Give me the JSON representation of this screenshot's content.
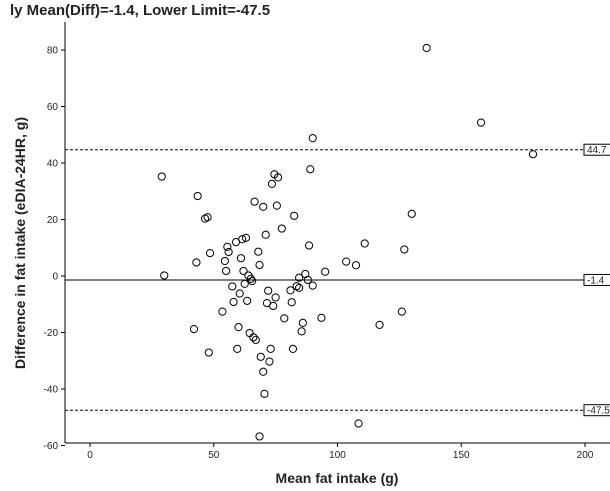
{
  "chart_data": {
    "type": "scatter",
    "title": "ly Mean(Diff)=-1.4, Lower Limit=-47.5",
    "xlabel": "Mean fat intake (g)",
    "ylabel": "Difference in fat intake (eDIA-24HR, g)",
    "xlim": [
      -10,
      210
    ],
    "ylim": [
      -60,
      95
    ],
    "x_ticks": [
      0,
      50,
      100,
      150,
      200
    ],
    "y_ticks": [
      -60,
      -40,
      -20,
      0,
      20,
      40,
      60,
      80
    ],
    "grid": false,
    "point_style": "open-circle",
    "reference_lines": [
      {
        "value": 44.7,
        "label": "44.7",
        "style": "dashed"
      },
      {
        "value": -1.4,
        "label": "-1.4",
        "style": "solid"
      },
      {
        "value": -47.5,
        "label": "-47.5",
        "style": "dashed"
      }
    ],
    "points": [
      {
        "x": 29.0,
        "y": 35.2
      },
      {
        "x": 30.0,
        "y": 0.2
      },
      {
        "x": 42.0,
        "y": -18.8
      },
      {
        "x": 43.0,
        "y": 4.8
      },
      {
        "x": 43.5,
        "y": 28.3
      },
      {
        "x": 46.5,
        "y": 20.3
      },
      {
        "x": 47.5,
        "y": 20.8
      },
      {
        "x": 48.0,
        "y": -27.1
      },
      {
        "x": 48.5,
        "y": 8.1
      },
      {
        "x": 53.5,
        "y": -12.6
      },
      {
        "x": 54.5,
        "y": 5.3
      },
      {
        "x": 55.0,
        "y": 1.8
      },
      {
        "x": 55.5,
        "y": 10.3
      },
      {
        "x": 56.0,
        "y": 8.5
      },
      {
        "x": 57.5,
        "y": -3.7
      },
      {
        "x": 58.0,
        "y": -9.2
      },
      {
        "x": 59.0,
        "y": 12.0
      },
      {
        "x": 59.5,
        "y": -25.8
      },
      {
        "x": 60.0,
        "y": -18.1
      },
      {
        "x": 60.5,
        "y": -6.2
      },
      {
        "x": 61.0,
        "y": 6.3
      },
      {
        "x": 61.5,
        "y": 13.0
      },
      {
        "x": 62.0,
        "y": 1.8
      },
      {
        "x": 62.5,
        "y": -2.8
      },
      {
        "x": 63.0,
        "y": 13.5
      },
      {
        "x": 63.5,
        "y": -8.8
      },
      {
        "x": 64.0,
        "y": 0.2
      },
      {
        "x": 64.5,
        "y": -20.2
      },
      {
        "x": 65.0,
        "y": -1.0
      },
      {
        "x": 65.5,
        "y": -1.8
      },
      {
        "x": 66.0,
        "y": -21.7
      },
      {
        "x": 66.5,
        "y": 26.3
      },
      {
        "x": 67.0,
        "y": -22.6
      },
      {
        "x": 68.0,
        "y": 8.6
      },
      {
        "x": 68.5,
        "y": 3.9
      },
      {
        "x": 68.5,
        "y": -56.8
      },
      {
        "x": 69.0,
        "y": -28.6
      },
      {
        "x": 70.0,
        "y": 24.5
      },
      {
        "x": 70.0,
        "y": -33.9
      },
      {
        "x": 70.5,
        "y": -41.7
      },
      {
        "x": 71.0,
        "y": 14.6
      },
      {
        "x": 71.5,
        "y": -9.6
      },
      {
        "x": 72.0,
        "y": -5.2
      },
      {
        "x": 72.5,
        "y": -30.3
      },
      {
        "x": 73.0,
        "y": -25.8
      },
      {
        "x": 73.5,
        "y": 32.6
      },
      {
        "x": 74.0,
        "y": -10.6
      },
      {
        "x": 74.5,
        "y": 36.0
      },
      {
        "x": 75.0,
        "y": -7.6
      },
      {
        "x": 75.5,
        "y": 24.9
      },
      {
        "x": 76.0,
        "y": 34.9
      },
      {
        "x": 77.5,
        "y": 16.8
      },
      {
        "x": 78.5,
        "y": -15.0
      },
      {
        "x": 81.0,
        "y": -5.1
      },
      {
        "x": 81.5,
        "y": -9.3
      },
      {
        "x": 82.0,
        "y": -25.8
      },
      {
        "x": 82.5,
        "y": 21.3
      },
      {
        "x": 83.5,
        "y": -3.6
      },
      {
        "x": 84.5,
        "y": -4.2
      },
      {
        "x": 84.5,
        "y": -0.6
      },
      {
        "x": 85.5,
        "y": -19.6
      },
      {
        "x": 86.0,
        "y": -16.6
      },
      {
        "x": 87.0,
        "y": 0.7
      },
      {
        "x": 88.0,
        "y": -1.4
      },
      {
        "x": 88.5,
        "y": 10.8
      },
      {
        "x": 89.0,
        "y": 37.8
      },
      {
        "x": 90.0,
        "y": 48.8
      },
      {
        "x": 90.0,
        "y": -3.4
      },
      {
        "x": 93.5,
        "y": -14.8
      },
      {
        "x": 95.0,
        "y": 1.5
      },
      {
        "x": 103.5,
        "y": 5.1
      },
      {
        "x": 107.5,
        "y": 3.8
      },
      {
        "x": 108.5,
        "y": -52.2
      },
      {
        "x": 111.0,
        "y": 11.5
      },
      {
        "x": 117.0,
        "y": -17.3
      },
      {
        "x": 126.0,
        "y": -12.6
      },
      {
        "x": 127.0,
        "y": 9.4
      },
      {
        "x": 130.0,
        "y": 22.0
      },
      {
        "x": 136.0,
        "y": 80.7
      },
      {
        "x": 158.0,
        "y": 54.3
      },
      {
        "x": 179.0,
        "y": 43.1
      }
    ]
  }
}
